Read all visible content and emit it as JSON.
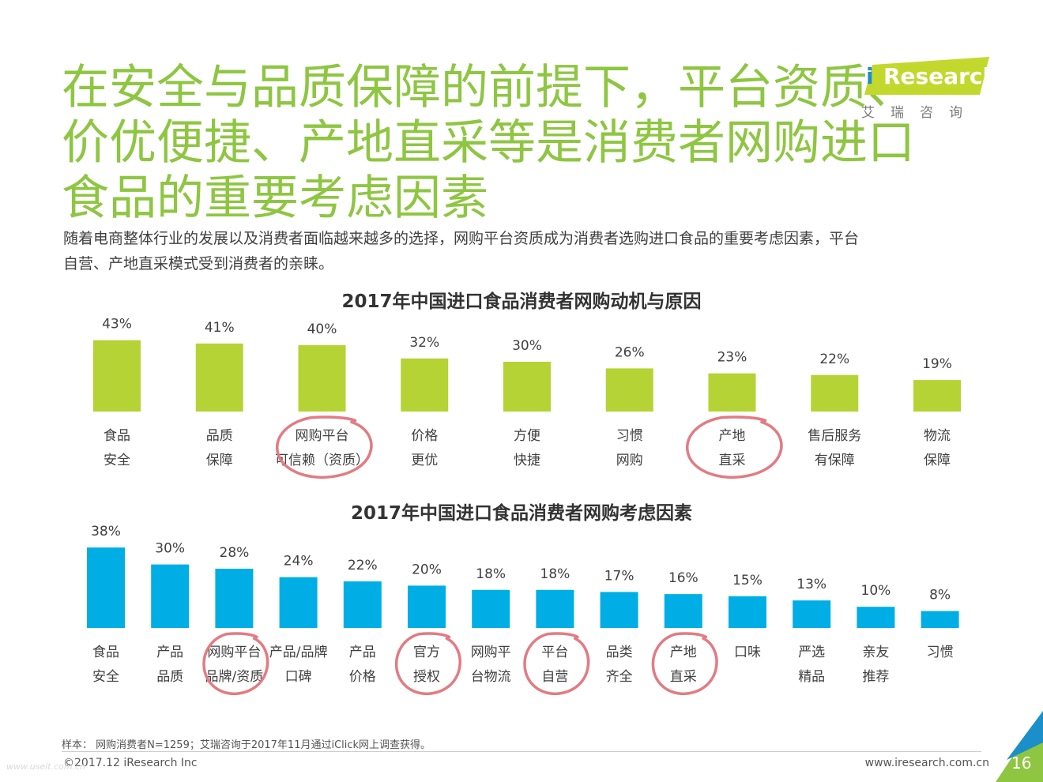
{
  "headline": {
    "line1": "在安全与品质保障的前提下，平台资质、",
    "line2": "价优便捷、产地直采等是消费者网购进口",
    "line3": "食品的重要考虑因素"
  },
  "logo": {
    "i": "i",
    "text": "Research",
    "cn": "艾瑞咨询",
    "colors": {
      "wedge": "#c3d82d",
      "i": "#1a8fc9"
    }
  },
  "subtitle": {
    "line1": "随着电商整体行业的发展以及消费者面临越来越多的选择，网购平台资质成为消费者选购进口食品的重要考虑因素，平台",
    "line2": "自营、产地直采模式受到消费者的亲睐。"
  },
  "chart_data": [
    {
      "type": "bar",
      "title": "2017年中国进口食品消费者网购动机与原因",
      "color": "#b5d334",
      "categories": [
        [
          "食品",
          "安全"
        ],
        [
          "品质",
          "保障"
        ],
        [
          "网购平台",
          "可信赖（资质）"
        ],
        [
          "价格",
          "更优"
        ],
        [
          "方便",
          "快捷"
        ],
        [
          "习惯",
          "网购"
        ],
        [
          "产地",
          "直采"
        ],
        [
          "售后服务",
          "有保障"
        ],
        [
          "物流",
          "保障"
        ]
      ],
      "values": [
        43,
        41,
        40,
        32,
        30,
        26,
        23,
        22,
        19
      ],
      "value_labels": [
        "43%",
        "41%",
        "40%",
        "32%",
        "30%",
        "26%",
        "23%",
        "22%",
        "19%"
      ],
      "circled": [
        2,
        6
      ]
    },
    {
      "type": "bar",
      "title": "2017年中国进口食品消费者网购考虑因素",
      "color": "#00aee6",
      "categories": [
        [
          "食品",
          "安全"
        ],
        [
          "产品",
          "品质"
        ],
        [
          "网购平台",
          "品牌/资质"
        ],
        [
          "产品/品牌",
          "口碑"
        ],
        [
          "产品",
          "价格"
        ],
        [
          "官方",
          "授权"
        ],
        [
          "网购平",
          "台物流"
        ],
        [
          "平台",
          "自营"
        ],
        [
          "品类",
          "齐全"
        ],
        [
          "产地",
          "直采"
        ],
        [
          "口味",
          ""
        ],
        [
          "严选",
          "精品"
        ],
        [
          "亲友",
          "推荐"
        ],
        [
          "习惯",
          ""
        ]
      ],
      "values": [
        38,
        30,
        28,
        24,
        22,
        20,
        18,
        18,
        17,
        16,
        15,
        13,
        10,
        8
      ],
      "value_labels": [
        "38%",
        "30%",
        "28%",
        "24%",
        "22%",
        "20%",
        "18%",
        "18%",
        "17%",
        "16%",
        "15%",
        "13%",
        "10%",
        "8%"
      ],
      "circled": [
        2,
        5,
        7,
        9
      ]
    }
  ],
  "footer": {
    "note": "样本： 网购消费者N=1259；艾瑞咨询于2017年11月通过iClick网上调查获得。",
    "copyright": "©2017.12 iResearch Inc",
    "site": "www.iresearch.com.cn",
    "page": "16",
    "watermark": "www.useit.com.cn"
  },
  "colors": {
    "headline": "#8ec641",
    "circle": "#e27b82",
    "corner_green": "#8ec641",
    "corner_blue": "#1a8fc9"
  }
}
